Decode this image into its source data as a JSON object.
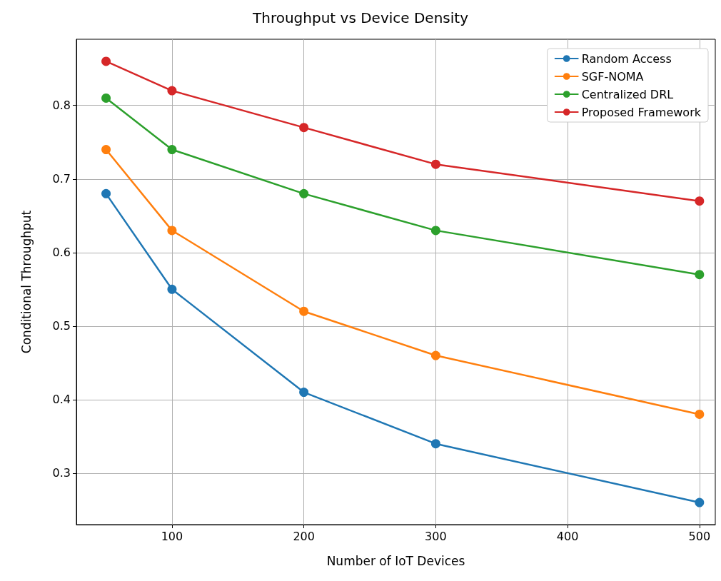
{
  "chart_data": {
    "type": "line",
    "title": "Throughput vs Device Density",
    "xlabel": "Number of IoT Devices",
    "ylabel": "Conditional Throughput",
    "x": [
      50,
      100,
      200,
      300,
      500
    ],
    "series": [
      {
        "name": "Random Access",
        "color": "#1f77b4",
        "values": [
          0.68,
          0.55,
          0.41,
          0.34,
          0.26
        ]
      },
      {
        "name": "SGF-NOMA",
        "color": "#ff7f0e",
        "values": [
          0.74,
          0.63,
          0.52,
          0.46,
          0.38
        ]
      },
      {
        "name": "Centralized DRL",
        "color": "#2ca02c",
        "values": [
          0.81,
          0.74,
          0.68,
          0.63,
          0.57
        ]
      },
      {
        "name": "Proposed Framework",
        "color": "#d62728",
        "values": [
          0.86,
          0.82,
          0.77,
          0.72,
          0.67
        ]
      }
    ],
    "xlim": [
      27.5,
      512
    ],
    "xticks": [
      100,
      200,
      300,
      400,
      500
    ],
    "ylim": [
      0.23,
      0.89
    ],
    "yticks": [
      0.3,
      0.4,
      0.5,
      0.6,
      0.7,
      0.8
    ],
    "grid": true,
    "legend": "top right",
    "marker": "circle",
    "line_style": "solid"
  }
}
